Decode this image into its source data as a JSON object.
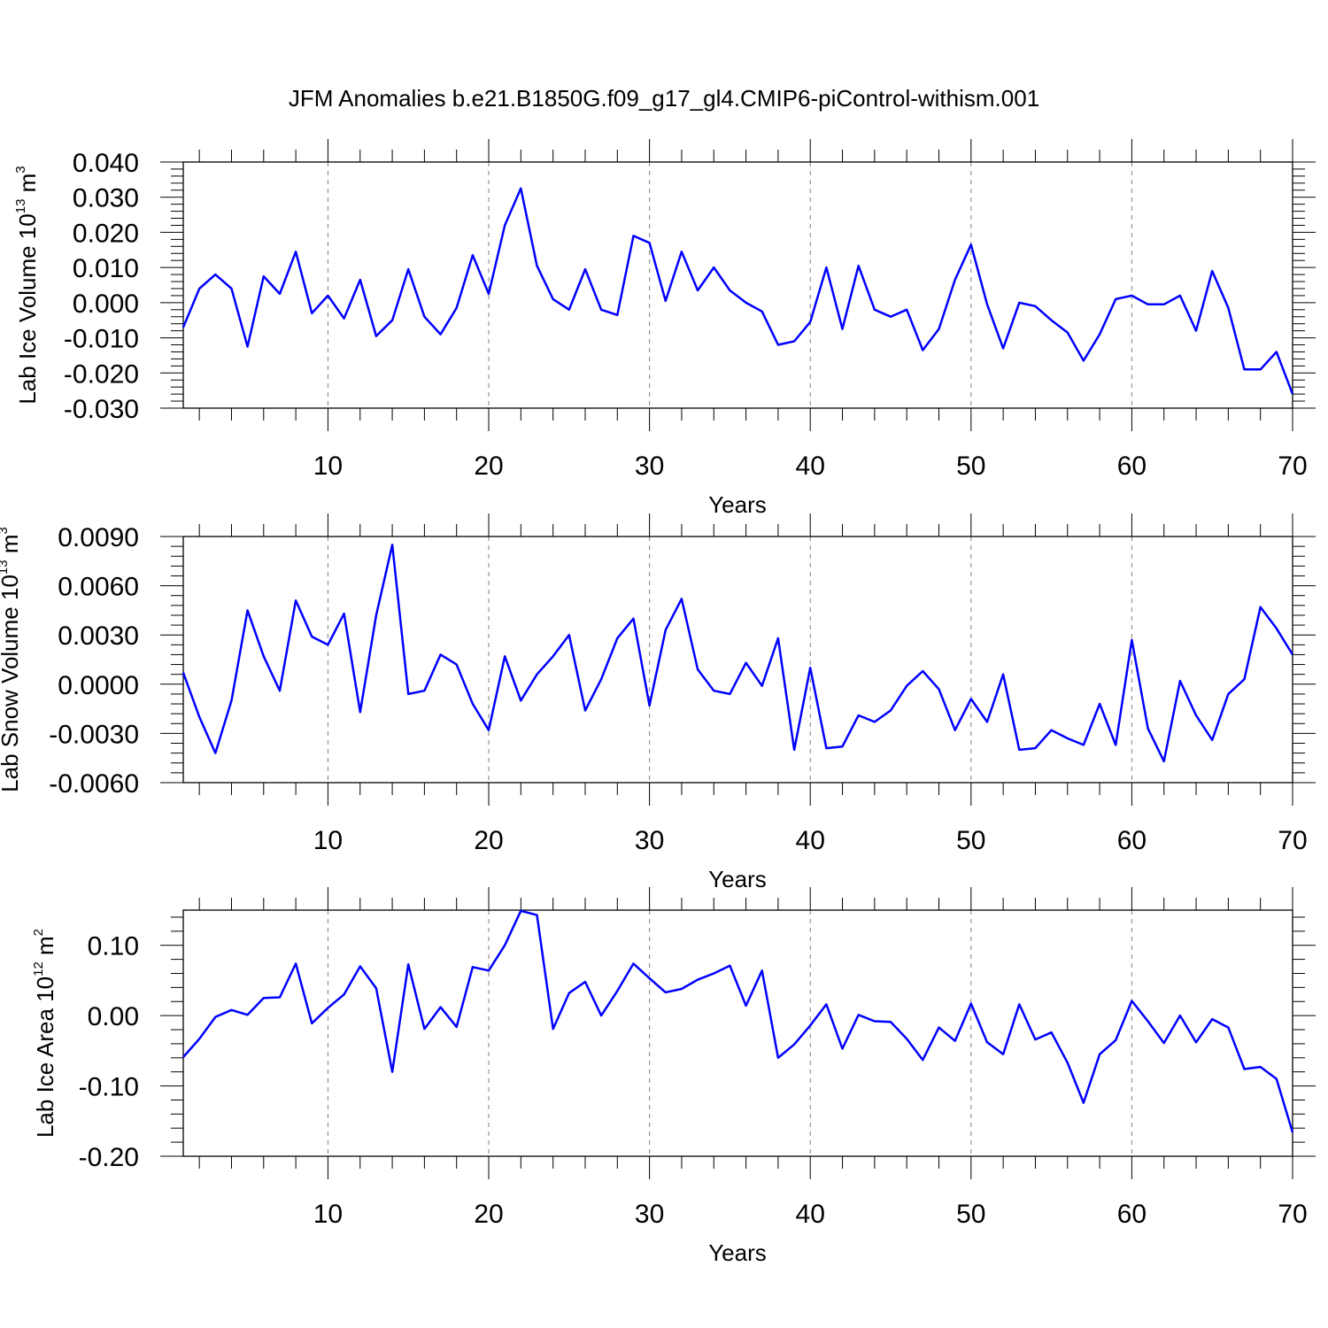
{
  "title": "JFM Anomalies b.e21.B1850G.f09_g17_gl4.CMIP6-piControl-withism.001",
  "colors": {
    "line": "#0000ff",
    "axis": "#000000",
    "grid": "#808080"
  },
  "chart_data": [
    {
      "type": "line",
      "ylabel": {
        "text": "Lab Ice Volume 10",
        "sup": "13",
        "unit": " m",
        "unit_sup": "3"
      },
      "xlabel": "Years",
      "xlim": [
        1,
        70
      ],
      "ylim": [
        -0.03,
        0.04
      ],
      "yticks": [
        "0.040",
        "0.030",
        "0.020",
        "0.010",
        "0.000",
        "-0.010",
        "-0.020",
        "-0.030"
      ],
      "xticks": [
        "10",
        "20",
        "30",
        "40",
        "50",
        "60",
        "70"
      ],
      "grid": "vertical dashed at major x ticks",
      "series": [
        {
          "values": [
            -0.007,
            0.004,
            0.008,
            0.004,
            -0.0125,
            0.0075,
            0.0025,
            0.0145,
            -0.003,
            0.002,
            -0.0045,
            0.0065,
            -0.0095,
            -0.005,
            0.0095,
            -0.004,
            -0.009,
            -0.0015,
            0.0135,
            0.0025,
            0.022,
            0.0325,
            0.0105,
            0.001,
            -0.002,
            0.0095,
            -0.002,
            -0.0035,
            0.019,
            0.017,
            0.0005,
            0.0145,
            0.0035,
            0.01,
            0.0035,
            0.0,
            -0.0025,
            -0.012,
            -0.011,
            -0.0055,
            0.01,
            -0.0075,
            0.0105,
            -0.002,
            -0.004,
            -0.002,
            -0.0135,
            -0.0075,
            0.0065,
            0.0165,
            -0.0005,
            -0.013,
            0.0,
            -0.001,
            -0.005,
            -0.0085,
            -0.0165,
            -0.009,
            0.001,
            0.002,
            -0.0005,
            -0.0005,
            0.002,
            -0.008,
            0.009,
            -0.0015,
            -0.019,
            -0.019,
            -0.014,
            -0.026
          ]
        }
      ]
    },
    {
      "type": "line",
      "ylabel": {
        "text": "Lab Snow Volume 10",
        "sup": "13",
        "unit": " m",
        "unit_sup": "3"
      },
      "xlabel": "Years",
      "xlim": [
        1,
        70
      ],
      "ylim": [
        -0.006,
        0.009
      ],
      "yticks": [
        "0.0090",
        "0.0060",
        "0.0030",
        "0.0000",
        "-0.0030",
        "-0.0060"
      ],
      "xticks": [
        "10",
        "20",
        "30",
        "40",
        "50",
        "60",
        "70"
      ],
      "grid": "vertical dashed at major x ticks",
      "series": [
        {
          "values": [
            0.0007,
            -0.002,
            -0.0042,
            -0.001,
            0.0045,
            0.0017,
            -0.0004,
            0.0051,
            0.0029,
            0.0024,
            0.0043,
            -0.0017,
            0.0042,
            0.0085,
            -0.0006,
            -0.0004,
            0.0018,
            0.0012,
            -0.0012,
            -0.0028,
            0.0017,
            -0.001,
            0.0006,
            0.0017,
            0.003,
            -0.0016,
            0.0003,
            0.0028,
            0.004,
            -0.0013,
            0.0033,
            0.0052,
            0.0009,
            -0.0004,
            -0.0006,
            0.0013,
            -0.0001,
            0.0028,
            -0.004,
            0.001,
            -0.0039,
            -0.0038,
            -0.0019,
            -0.0023,
            -0.0016,
            -0.0001,
            0.0008,
            -0.0003,
            -0.0028,
            -0.0009,
            -0.0023,
            0.0006,
            -0.004,
            -0.0039,
            -0.0028,
            -0.0033,
            -0.0037,
            -0.0012,
            -0.0037,
            0.0027,
            -0.0027,
            -0.0047,
            0.0002,
            -0.0019,
            -0.0034,
            -0.0006,
            0.0003,
            0.0047,
            0.0034,
            0.0018
          ]
        }
      ]
    },
    {
      "type": "line",
      "ylabel": {
        "text": "Lab Ice Area 10",
        "sup": "12",
        "unit": " m",
        "unit_sup": "2"
      },
      "xlabel": "Years",
      "xlim": [
        1,
        70
      ],
      "ylim": [
        -0.2,
        0.15
      ],
      "yticks": [
        "0.10",
        "0.00",
        "-0.10",
        "-0.20"
      ],
      "xticks": [
        "10",
        "20",
        "30",
        "40",
        "50",
        "60",
        "70"
      ],
      "grid": "vertical dashed at major x ticks",
      "series": [
        {
          "values": [
            -0.059,
            -0.033,
            -0.002,
            0.008,
            0.001,
            0.025,
            0.026,
            0.074,
            -0.011,
            0.011,
            0.03,
            0.07,
            0.039,
            -0.08,
            0.073,
            -0.019,
            0.012,
            -0.016,
            0.069,
            0.064,
            0.1,
            0.149,
            0.143,
            -0.019,
            0.032,
            0.048,
            0.0,
            0.035,
            0.074,
            0.053,
            0.033,
            0.038,
            0.051,
            0.06,
            0.071,
            0.014,
            0.064,
            -0.06,
            -0.041,
            -0.014,
            0.016,
            -0.047,
            0.001,
            -0.008,
            -0.009,
            -0.033,
            -0.063,
            -0.017,
            -0.036,
            0.017,
            -0.038,
            -0.055,
            0.016,
            -0.034,
            -0.024,
            -0.067,
            -0.124,
            -0.055,
            -0.035,
            0.021,
            -0.008,
            -0.039,
            0.0,
            -0.038,
            -0.005,
            -0.017,
            -0.076,
            -0.073,
            -0.09,
            -0.166
          ]
        }
      ]
    }
  ]
}
